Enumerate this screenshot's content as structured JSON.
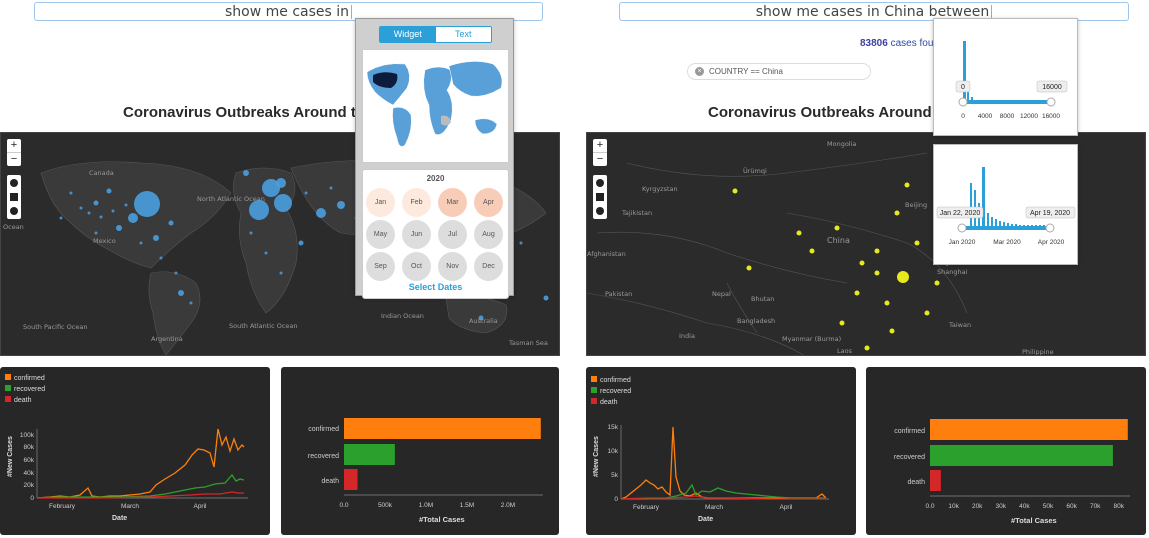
{
  "left": {
    "query_text": "show me cases in",
    "map_title": "Coronavirus Outbreaks Around the W",
    "widget": {
      "tabs": [
        "Widget",
        "Text"
      ],
      "active_tab": "Widget",
      "year": "2020",
      "months": [
        "Jan",
        "Feb",
        "Mar",
        "Apr",
        "May",
        "Jun",
        "Jul",
        "Aug",
        "Sep",
        "Oct",
        "Nov",
        "Dec"
      ],
      "select_label": "Select Dates"
    },
    "map_labels": [
      "Canada",
      "North Atlantic Ocean",
      "Mexico",
      "South Pacific Ocean",
      "South Atlantic Ocean",
      "Indian Ocean",
      "Australia",
      "Argentina",
      "Ocean",
      "Tasman Sea"
    ],
    "line_chart": {
      "legend": [
        "confirmed",
        "recovered",
        "death"
      ],
      "ylabel": "#New Cases",
      "xlabel": "Date",
      "yticks": [
        "0",
        "20k",
        "40k",
        "60k",
        "80k",
        "100k"
      ],
      "xticks": [
        "February",
        "March",
        "April"
      ]
    },
    "bar_chart": {
      "categories": [
        "confirmed",
        "recovered",
        "death"
      ],
      "xticks": [
        "0.0",
        "500k",
        "1.0M",
        "1.5M",
        "2.0M"
      ],
      "xlabel": "#Total Cases"
    }
  },
  "right": {
    "query_text": "show me cases in China between",
    "count_value": "83806",
    "count_suffix": " cases foun",
    "filter_chip": "COUNTRY == China",
    "map_title": "Coronavirus Outbreaks Around the",
    "slider_count": {
      "min_label": "0",
      "max_label": "16000",
      "ticks": [
        "0",
        "4000",
        "8000",
        "12000",
        "16000"
      ]
    },
    "slider_date": {
      "min_label": "Jan 22, 2020",
      "max_label": "Apr 19, 2020",
      "ticks": [
        "Jan 2020",
        "Mar 2020",
        "Apr 2020"
      ]
    },
    "map_labels": [
      "Mongolia",
      "Kyrgyzstan",
      "Tajikistan",
      "Afghanistan",
      "Pakistan",
      "Nepal",
      "Bhutan",
      "Bangladesh",
      "India",
      "Myanmar (Burma)",
      "Laos",
      "China",
      "Taiwan",
      "Philippine",
      "Ürümqi",
      "Beijing",
      "Shanghai"
    ],
    "line_chart": {
      "legend": [
        "confirmed",
        "recovered",
        "death"
      ],
      "ylabel": "#New Cases",
      "xlabel": "Date",
      "yticks": [
        "0",
        "5k",
        "10k",
        "15k"
      ],
      "xticks": [
        "February",
        "March",
        "April"
      ]
    },
    "bar_chart": {
      "categories": [
        "confirmed",
        "recovered",
        "death"
      ],
      "xticks": [
        "0.0",
        "10k",
        "20k",
        "30k",
        "40k",
        "50k",
        "60k",
        "70k",
        "80k"
      ],
      "xlabel": "#Total Cases"
    }
  },
  "colors": {
    "confirmed": "#ff7f0e",
    "recovered": "#2ca02c",
    "death": "#d62728",
    "accent": "#2a9fd8",
    "bubble_world": "#4a9ee0",
    "bubble_china": "#e8e81c"
  },
  "chart_data": [
    {
      "type": "bar",
      "categories": [
        "confirmed",
        "recovered",
        "death"
      ],
      "values": [
        2400000,
        620000,
        165000
      ],
      "xlabel": "#Total Cases",
      "xlim": [
        0,
        2400000
      ]
    },
    {
      "type": "bar",
      "categories": [
        "confirmed",
        "recovered",
        "death"
      ],
      "values": [
        83806,
        77500,
        4600
      ],
      "xlabel": "#Total Cases",
      "xlim": [
        0,
        84000
      ]
    }
  ]
}
